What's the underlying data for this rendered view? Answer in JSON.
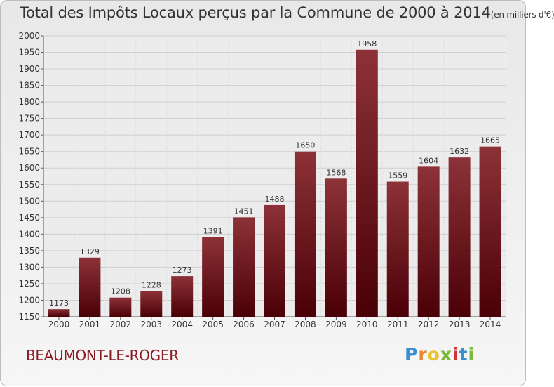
{
  "title": "Total des Impôts Locaux perçus par la Commune de 2000 à 2014",
  "title_unit": "(en milliers d'€)",
  "commune": "BEAUMONT-LE-ROGER",
  "logo": {
    "letters": [
      "P",
      "r",
      "o",
      "x",
      "i",
      "t",
      "i"
    ],
    "colors": [
      "#3a8fd0",
      "#e8862e",
      "#e8c32e",
      "#7ab93a",
      "#d0343a",
      "#3a8fd0",
      "#7ab93a"
    ]
  },
  "colors": {
    "bar_top": "#8c3238",
    "bar_bottom": "#4a0006"
  },
  "chart_data": {
    "type": "bar",
    "title": "Total des Impôts Locaux perçus par la Commune de 2000 à 2014 (en milliers d'€)",
    "xlabel": "",
    "ylabel": "",
    "categories": [
      "2000",
      "2001",
      "2002",
      "2003",
      "2004",
      "2005",
      "2006",
      "2007",
      "2008",
      "2009",
      "2010",
      "2011",
      "2012",
      "2013",
      "2014"
    ],
    "values": [
      1173,
      1329,
      1208,
      1228,
      1273,
      1391,
      1451,
      1488,
      1650,
      1568,
      1958,
      1559,
      1604,
      1632,
      1665
    ],
    "ylim": [
      1150,
      2000
    ],
    "yticks": [
      "1150",
      "1200",
      "1250",
      "1300",
      "1350",
      "1400",
      "1450",
      "1500",
      "1550",
      "1600",
      "1650",
      "1700",
      "1750",
      "1800",
      "1850",
      "1900",
      "1950",
      "2000"
    ],
    "grid": true
  }
}
